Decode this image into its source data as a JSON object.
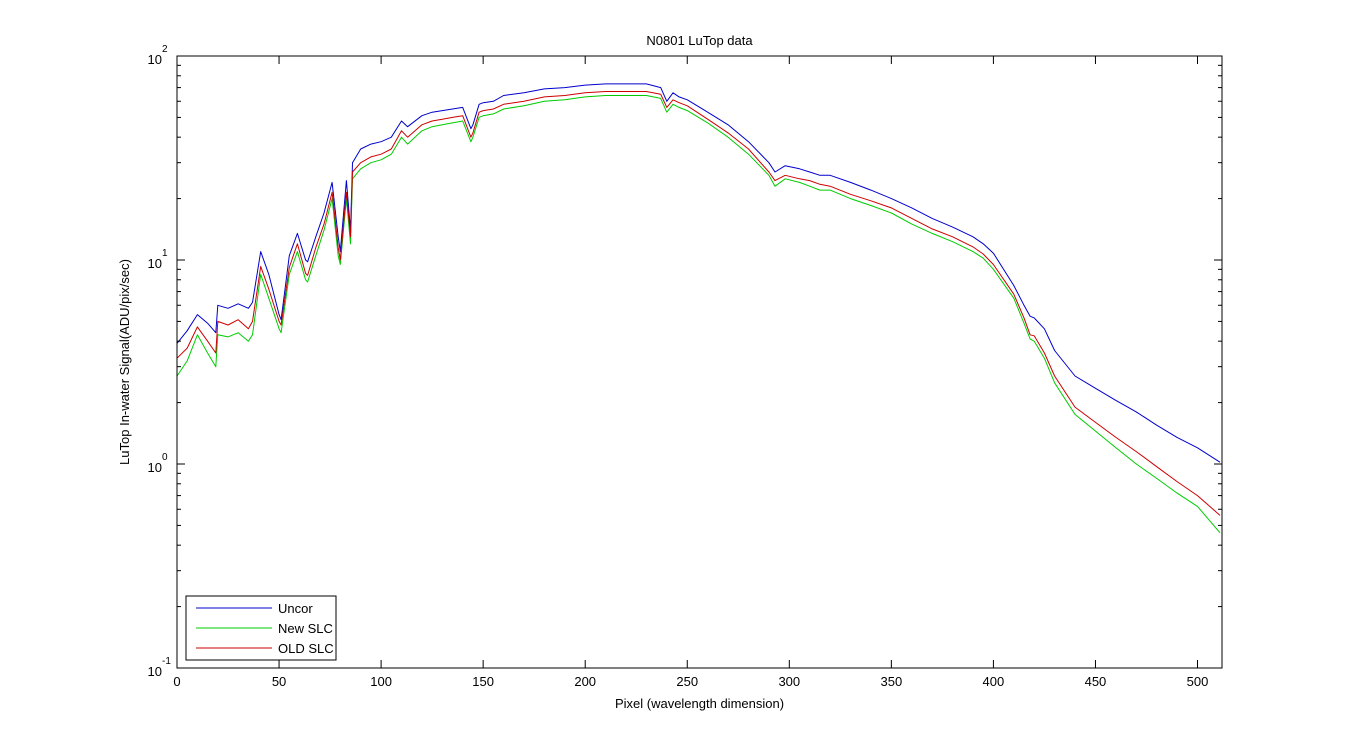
{
  "chart_data": {
    "type": "line",
    "title": "N0801   LuTop data",
    "xlabel": "Pixel (wavelength dimension)",
    "ylabel": "LuTop In-water Signal(ADU/pix/sec)",
    "x_scale": "linear",
    "y_scale": "log",
    "xlim": [
      0,
      512
    ],
    "ylim": [
      0.1,
      100
    ],
    "x_ticks": [
      0,
      50,
      100,
      150,
      200,
      250,
      300,
      350,
      400,
      450,
      500
    ],
    "x_tick_labels": [
      "0",
      "50",
      "100",
      "150",
      "200",
      "250",
      "300",
      "350",
      "400",
      "450",
      "500"
    ],
    "y_ticks": [
      {
        "value": 100,
        "base": "10",
        "exponent": "2"
      },
      {
        "value": 10,
        "base": "10",
        "exponent": "1"
      },
      {
        "value": 1,
        "base": "10",
        "exponent": "0"
      },
      {
        "value": 0.1,
        "base": "10",
        "exponent": "-1"
      }
    ],
    "grid": false,
    "legend_position": "bottom-left",
    "x": [
      0,
      5,
      10,
      15,
      19,
      20,
      25,
      30,
      35,
      37,
      41,
      45,
      50,
      51,
      55,
      59,
      63,
      64,
      68,
      72,
      76,
      79,
      80,
      83,
      85,
      86,
      90,
      95,
      100,
      105,
      110,
      113,
      120,
      125,
      130,
      135,
      140,
      144,
      145,
      148,
      150,
      155,
      160,
      170,
      180,
      190,
      200,
      210,
      220,
      230,
      237,
      240,
      243,
      246,
      250,
      260,
      270,
      280,
      290,
      293,
      298,
      305,
      310,
      315,
      320,
      330,
      340,
      350,
      360,
      370,
      380,
      390,
      395,
      400,
      410,
      415,
      418,
      420,
      425,
      430,
      440,
      450,
      460,
      470,
      480,
      490,
      500,
      511
    ],
    "series": [
      {
        "name": "Uncor",
        "color": "#0000cc",
        "values": [
          3.9,
          4.5,
          5.4,
          4.9,
          4.4,
          6.0,
          5.8,
          6.1,
          5.8,
          6.2,
          11.0,
          8.5,
          5.4,
          5.1,
          10.5,
          13.5,
          10.0,
          9.8,
          13.0,
          17.0,
          24.0,
          13.0,
          11.0,
          24.5,
          14.0,
          30.0,
          35.0,
          37.0,
          38.0,
          40.0,
          48.0,
          45.0,
          51.0,
          53.0,
          54.0,
          55.0,
          56.0,
          44.0,
          46.0,
          58.0,
          59.0,
          60.0,
          64.0,
          66.0,
          69.0,
          70.0,
          72.0,
          73.0,
          73.0,
          73.0,
          70.0,
          60.0,
          66.0,
          63.0,
          61.0,
          53.0,
          46.0,
          38.0,
          30.0,
          27.0,
          29.0,
          28.0,
          27.0,
          26.0,
          26.0,
          24.0,
          22.0,
          20.0,
          18.0,
          16.0,
          14.5,
          13.0,
          12.0,
          10.8,
          7.5,
          6.0,
          5.3,
          5.2,
          4.6,
          3.6,
          2.7,
          2.35,
          2.05,
          1.8,
          1.55,
          1.35,
          1.2,
          1.02
        ]
      },
      {
        "name": "New SLC",
        "color": "#00cc00",
        "values": [
          2.7,
          3.2,
          4.3,
          3.5,
          3.0,
          4.3,
          4.2,
          4.4,
          4.0,
          4.3,
          8.5,
          6.5,
          4.6,
          4.4,
          8.5,
          11.0,
          8.0,
          7.8,
          10.5,
          14.0,
          20.0,
          10.5,
          9.5,
          20.0,
          12.0,
          25.0,
          28.0,
          30.0,
          31.0,
          33.0,
          40.0,
          37.0,
          43.0,
          45.0,
          46.0,
          47.0,
          48.0,
          38.0,
          40.0,
          50.0,
          51.0,
          52.0,
          55.0,
          57.0,
          60.0,
          61.0,
          63.0,
          64.0,
          64.0,
          64.0,
          62.0,
          53.0,
          58.0,
          56.0,
          54.0,
          47.0,
          40.0,
          33.0,
          26.0,
          23.0,
          25.0,
          24.0,
          23.0,
          22.0,
          22.0,
          20.0,
          18.5,
          17.0,
          15.0,
          13.5,
          12.3,
          11.0,
          10.2,
          9.0,
          6.5,
          4.9,
          4.1,
          4.0,
          3.3,
          2.5,
          1.75,
          1.45,
          1.2,
          1.0,
          0.85,
          0.72,
          0.62,
          0.46
        ]
      },
      {
        "name": "OLD SLC",
        "color": "#cc0000",
        "values": [
          3.3,
          3.7,
          4.7,
          4.0,
          3.5,
          5.0,
          4.8,
          5.1,
          4.6,
          5.0,
          9.3,
          7.2,
          5.0,
          4.8,
          9.2,
          12.0,
          8.6,
          8.4,
          11.5,
          15.0,
          21.5,
          11.5,
          10.0,
          21.5,
          13.0,
          27.0,
          30.0,
          32.0,
          33.0,
          35.0,
          43.0,
          40.0,
          46.0,
          48.0,
          49.0,
          50.0,
          51.0,
          40.0,
          42.0,
          53.0,
          54.0,
          55.0,
          58.0,
          60.0,
          63.0,
          64.0,
          66.0,
          67.0,
          67.0,
          67.0,
          65.0,
          56.0,
          61.0,
          59.0,
          57.0,
          49.0,
          42.0,
          35.0,
          27.0,
          24.5,
          26.0,
          25.0,
          24.5,
          23.5,
          23.0,
          21.0,
          19.5,
          18.0,
          16.0,
          14.2,
          13.0,
          11.6,
          10.7,
          9.5,
          6.8,
          5.2,
          4.3,
          4.25,
          3.5,
          2.7,
          1.9,
          1.6,
          1.35,
          1.15,
          0.97,
          0.82,
          0.7,
          0.56
        ]
      }
    ]
  }
}
